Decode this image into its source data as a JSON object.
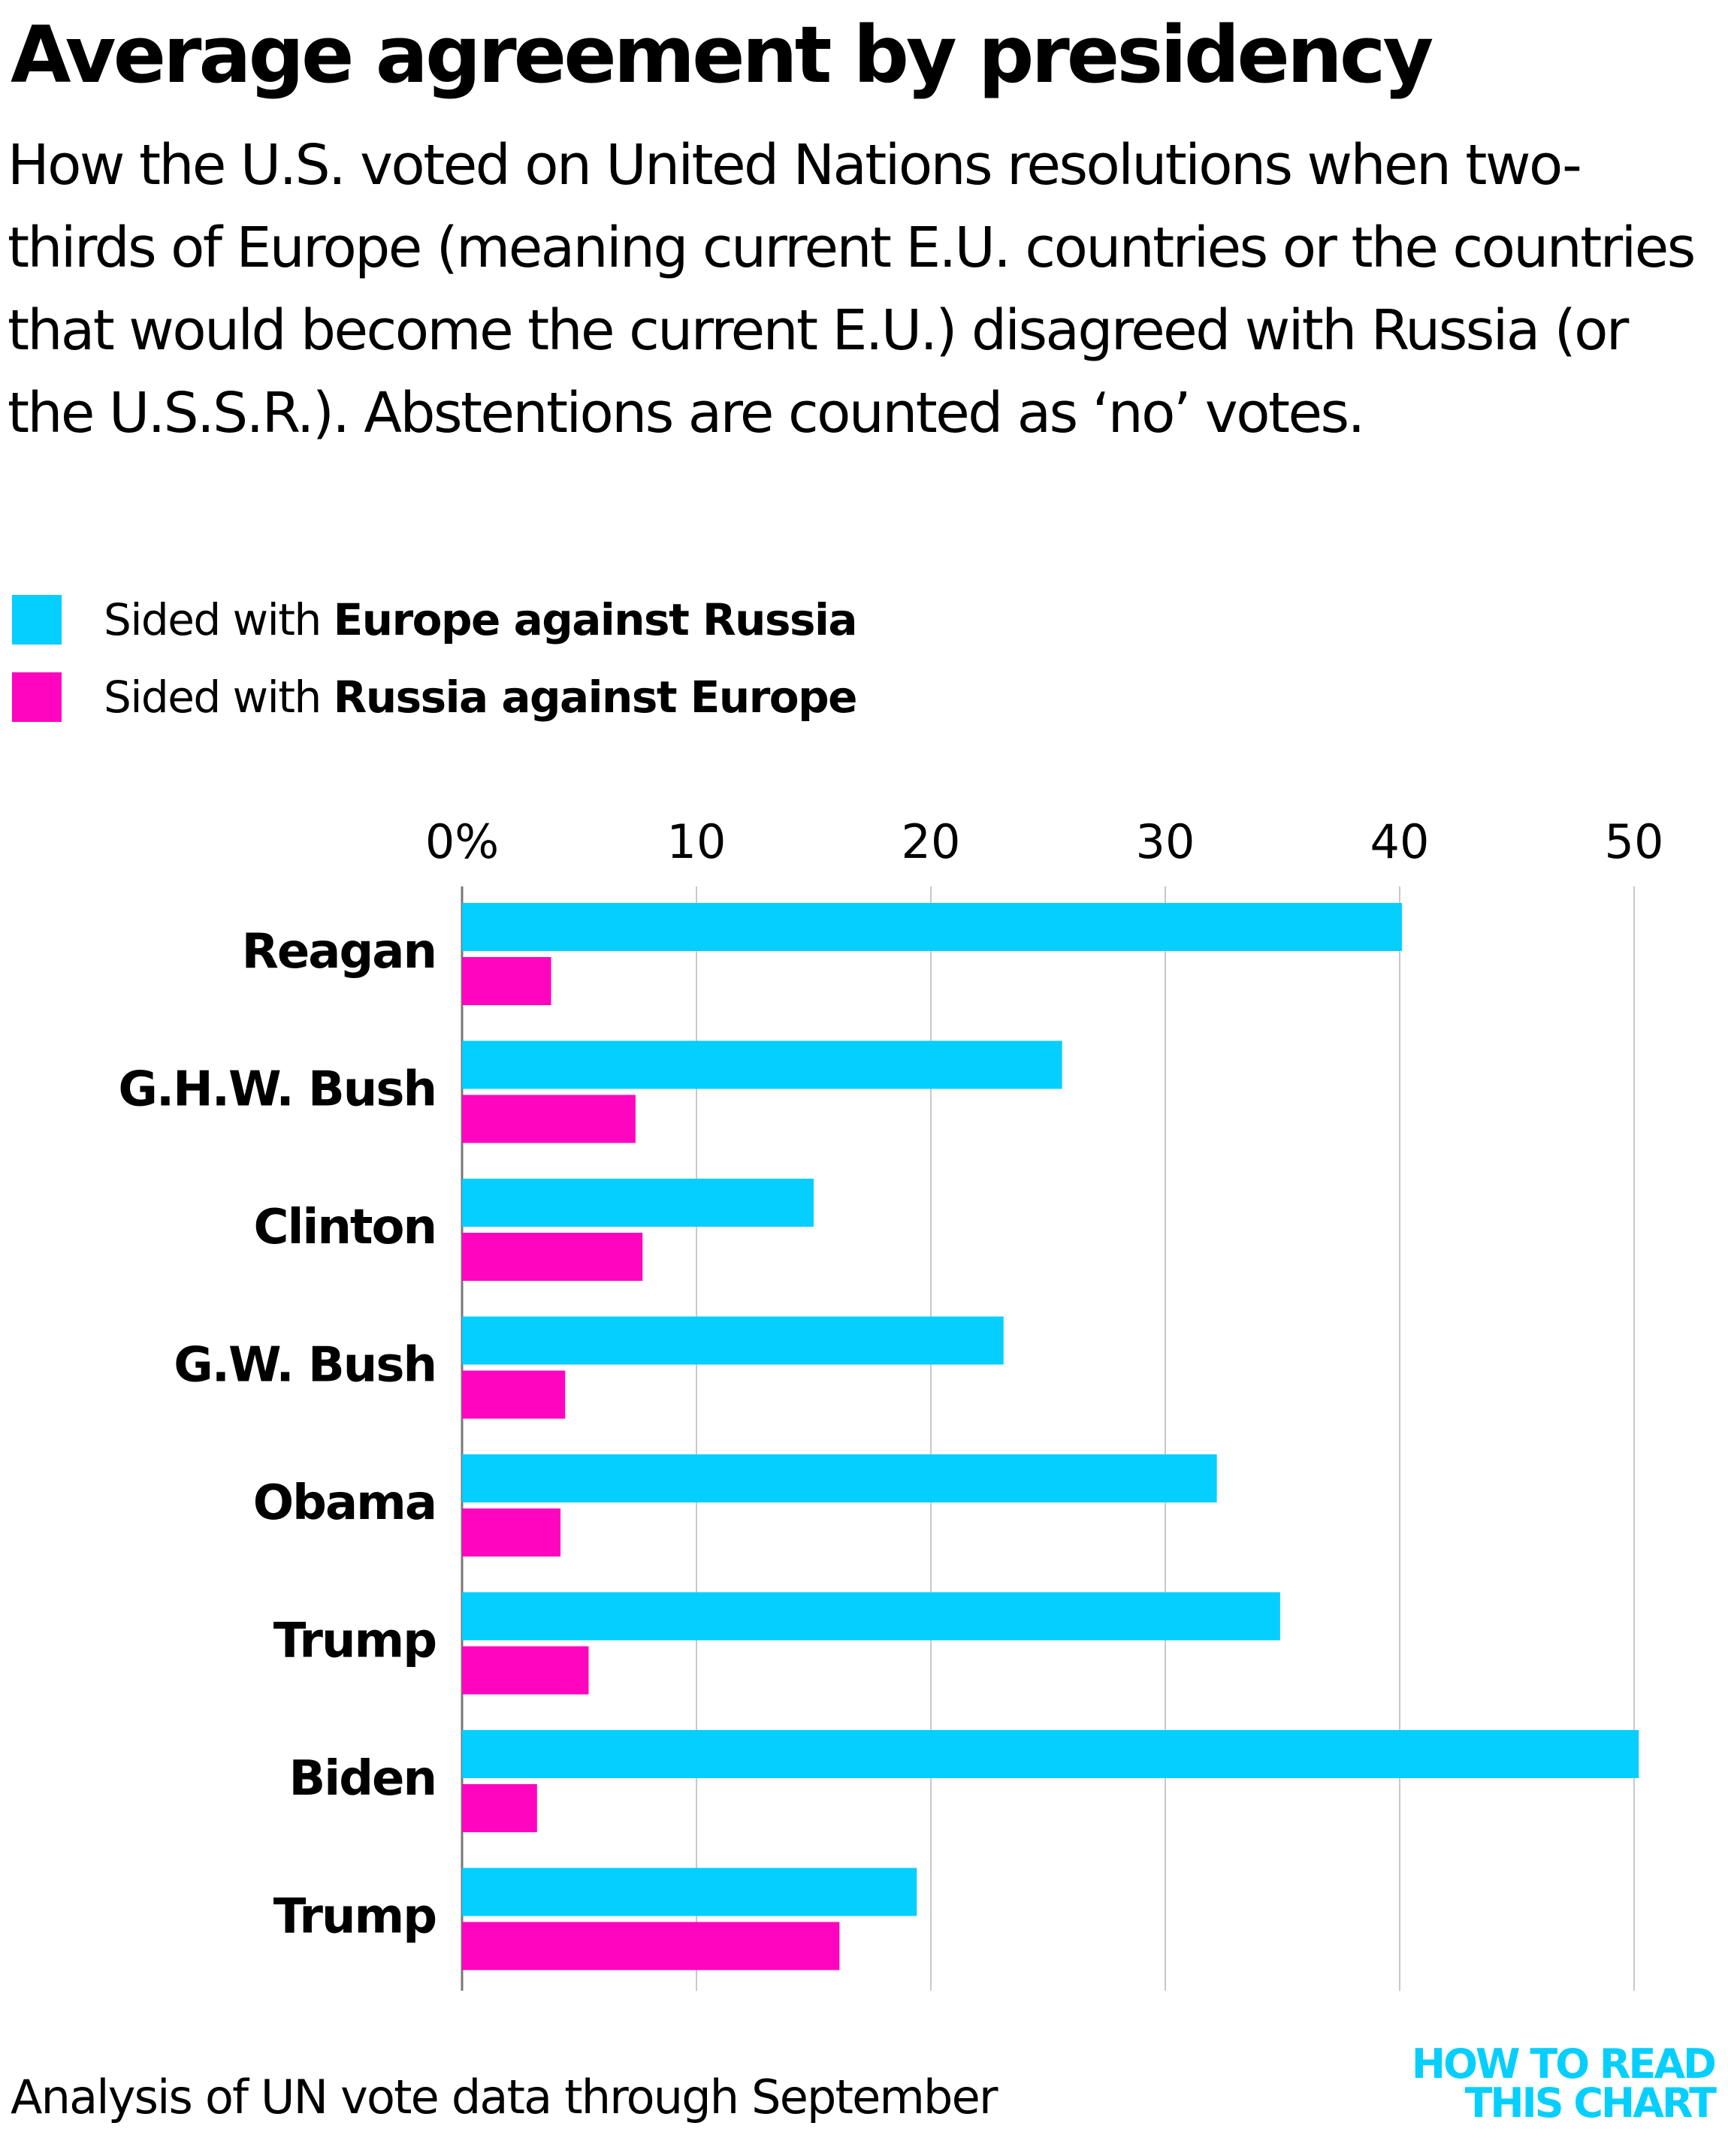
{
  "header": {
    "title": "Average agreement by presidency",
    "subtitle": "How the U.S. voted on United Nations resolutions when two-thirds of Europe (meaning current E.U. countries or the countries that would become the current E.U.) disagreed with Russia (or the U.S.S.R.). Abstentions are counted as ‘no’ votes."
  },
  "legend": [
    {
      "prefix": "Sided with ",
      "bold": "Europe against Russia",
      "color": "#05CFFF"
    },
    {
      "prefix": "Sided with ",
      "bold": "Russia against Europe",
      "color": "#FF05C0"
    }
  ],
  "footer": {
    "note": "Analysis of UN vote data through September",
    "brand_line1": "HOW TO READ",
    "brand_line2": "THIS CHART",
    "brand_color": "#05CFFF"
  },
  "chart_data": {
    "type": "bar",
    "orientation": "horizontal",
    "title": "Average agreement by presidency",
    "xlabel": "",
    "ylabel": "",
    "xlim": [
      0,
      50
    ],
    "x_ticks": [
      0,
      10,
      20,
      30,
      40,
      50
    ],
    "x_tick_labels": [
      "0%",
      "10",
      "20",
      "30",
      "40",
      "50"
    ],
    "x_axis_position": "top",
    "grid": true,
    "legend_position": "top-left",
    "categories": [
      "Reagan",
      "G.H.W. Bush",
      "Clinton",
      "G.W. Bush",
      "Obama",
      "Trump",
      "Biden",
      "Trump"
    ],
    "series": [
      {
        "name": "Sided with Europe against Russia",
        "color": "#05CFFF",
        "values": [
          40.1,
          25.6,
          15.0,
          23.1,
          32.2,
          34.9,
          50.2,
          19.4
        ]
      },
      {
        "name": "Sided with Russia against Europe",
        "color": "#FF05C0",
        "values": [
          3.8,
          7.4,
          7.7,
          4.4,
          4.2,
          5.4,
          3.2,
          16.1
        ]
      }
    ]
  }
}
